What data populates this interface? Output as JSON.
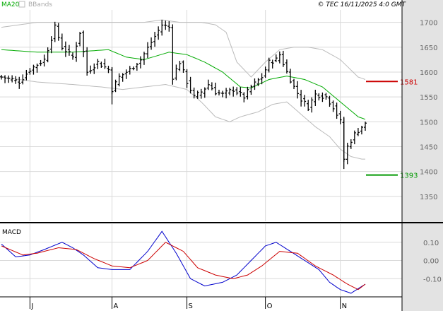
{
  "header": {
    "legend_ma20": "MA20",
    "legend_bbands": "BBands",
    "copyright": "© TEC 16/11/2025 4:0 GMT"
  },
  "colors": {
    "grid": "#d9d9d9",
    "price_bars": "#000000",
    "ma20": "#00aa00",
    "bbands": "#bbbbbb",
    "macd": "#0000cc",
    "signal": "#cc0000",
    "resistance": "#cc0000",
    "support": "#009900",
    "border": "#000000",
    "side_panel": "#e3e3e3"
  },
  "chart_data": [
    {
      "type": "ohlc",
      "title": "",
      "y_ticks": [
        "1700",
        "1650",
        "1600",
        "1550",
        "1500",
        "1450",
        "1400",
        "1350"
      ],
      "ylim": [
        1300,
        1725
      ],
      "x_ticks": [
        "J",
        "A",
        "S",
        "O",
        "N"
      ],
      "x_tick_index": [
        8,
        31,
        52,
        74,
        95
      ],
      "n_bars": 103,
      "anchors_close": [
        [
          0,
          1590
        ],
        [
          3,
          1585
        ],
        [
          5,
          1580
        ],
        [
          8,
          1605
        ],
        [
          12,
          1625
        ],
        [
          15,
          1690
        ],
        [
          17,
          1650
        ],
        [
          20,
          1630
        ],
        [
          22,
          1680
        ],
        [
          24,
          1600
        ],
        [
          27,
          1620
        ],
        [
          30,
          1605
        ],
        [
          31,
          1565
        ],
        [
          33,
          1590
        ],
        [
          36,
          1605
        ],
        [
          39,
          1625
        ],
        [
          42,
          1660
        ],
        [
          45,
          1695
        ],
        [
          47,
          1690
        ],
        [
          48,
          1590
        ],
        [
          50,
          1620
        ],
        [
          52,
          1580
        ],
        [
          54,
          1550
        ],
        [
          56,
          1560
        ],
        [
          58,
          1575
        ],
        [
          60,
          1560
        ],
        [
          62,
          1555
        ],
        [
          65,
          1565
        ],
        [
          68,
          1550
        ],
        [
          70,
          1570
        ],
        [
          73,
          1590
        ],
        [
          75,
          1620
        ],
        [
          77,
          1625
        ],
        [
          78,
          1635
        ],
        [
          80,
          1600
        ],
        [
          82,
          1570
        ],
        [
          84,
          1545
        ],
        [
          86,
          1530
        ],
        [
          88,
          1555
        ],
        [
          91,
          1550
        ],
        [
          93,
          1530
        ],
        [
          95,
          1500
        ],
        [
          96,
          1425
        ],
        [
          97,
          1450
        ],
        [
          99,
          1475
        ],
        [
          101,
          1490
        ],
        [
          102,
          1495
        ]
      ],
      "anchors_ma20": [
        [
          0,
          1645
        ],
        [
          10,
          1640
        ],
        [
          20,
          1640
        ],
        [
          30,
          1645
        ],
        [
          35,
          1630
        ],
        [
          40,
          1625
        ],
        [
          47,
          1640
        ],
        [
          52,
          1635
        ],
        [
          57,
          1620
        ],
        [
          62,
          1600
        ],
        [
          67,
          1570
        ],
        [
          70,
          1568
        ],
        [
          75,
          1585
        ],
        [
          80,
          1592
        ],
        [
          85,
          1585
        ],
        [
          90,
          1570
        ],
        [
          95,
          1540
        ],
        [
          100,
          1510
        ],
        [
          102,
          1505
        ]
      ],
      "anchors_bb_upper": [
        [
          0,
          1690
        ],
        [
          10,
          1700
        ],
        [
          20,
          1700
        ],
        [
          30,
          1700
        ],
        [
          40,
          1700
        ],
        [
          45,
          1705
        ],
        [
          50,
          1700
        ],
        [
          56,
          1700
        ],
        [
          60,
          1695
        ],
        [
          63,
          1680
        ],
        [
          66,
          1620
        ],
        [
          70,
          1590
        ],
        [
          74,
          1620
        ],
        [
          78,
          1645
        ],
        [
          82,
          1650
        ],
        [
          86,
          1650
        ],
        [
          90,
          1645
        ],
        [
          95,
          1625
        ],
        [
          100,
          1590
        ],
        [
          102,
          1585
        ]
      ],
      "anchors_bb_lower": [
        [
          0,
          1590
        ],
        [
          10,
          1580
        ],
        [
          20,
          1575
        ],
        [
          28,
          1570
        ],
        [
          34,
          1565
        ],
        [
          40,
          1570
        ],
        [
          46,
          1575
        ],
        [
          52,
          1565
        ],
        [
          56,
          1540
        ],
        [
          60,
          1510
        ],
        [
          64,
          1500
        ],
        [
          67,
          1510
        ],
        [
          72,
          1520
        ],
        [
          76,
          1535
        ],
        [
          80,
          1540
        ],
        [
          84,
          1515
        ],
        [
          88,
          1490
        ],
        [
          92,
          1470
        ],
        [
          95,
          1445
        ],
        [
          98,
          1430
        ],
        [
          101,
          1425
        ],
        [
          102,
          1425
        ]
      ],
      "levels": [
        {
          "label": "1581",
          "value": 1581,
          "color_key": "resistance"
        },
        {
          "label": "1393",
          "value": 1393,
          "color_key": "support"
        }
      ]
    },
    {
      "type": "line",
      "title": "MACD",
      "y_ticks": [
        "0.10",
        "0.00",
        "-0.10"
      ],
      "ylim": [
        -0.2,
        0.2
      ],
      "anchors_macd": [
        [
          0,
          0.09
        ],
        [
          4,
          0.02
        ],
        [
          8,
          0.03
        ],
        [
          12,
          0.06
        ],
        [
          17,
          0.1
        ],
        [
          20,
          0.07
        ],
        [
          23,
          0.03
        ],
        [
          27,
          -0.04
        ],
        [
          31,
          -0.05
        ],
        [
          36,
          -0.05
        ],
        [
          41,
          0.05
        ],
        [
          45,
          0.16
        ],
        [
          49,
          0.04
        ],
        [
          53,
          -0.1
        ],
        [
          57,
          -0.14
        ],
        [
          62,
          -0.12
        ],
        [
          66,
          -0.08
        ],
        [
          70,
          0.0
        ],
        [
          74,
          0.08
        ],
        [
          77,
          0.1
        ],
        [
          81,
          0.05
        ],
        [
          85,
          0.0
        ],
        [
          89,
          -0.05
        ],
        [
          92,
          -0.12
        ],
        [
          95,
          -0.16
        ],
        [
          98,
          -0.18
        ],
        [
          102,
          -0.13
        ]
      ],
      "anchors_signal": [
        [
          0,
          0.08
        ],
        [
          6,
          0.03
        ],
        [
          10,
          0.04
        ],
        [
          16,
          0.07
        ],
        [
          21,
          0.06
        ],
        [
          26,
          0.01
        ],
        [
          31,
          -0.03
        ],
        [
          36,
          -0.04
        ],
        [
          41,
          0.0
        ],
        [
          46,
          0.1
        ],
        [
          51,
          0.05
        ],
        [
          55,
          -0.04
        ],
        [
          60,
          -0.08
        ],
        [
          65,
          -0.1
        ],
        [
          69,
          -0.08
        ],
        [
          73,
          -0.03
        ],
        [
          78,
          0.05
        ],
        [
          83,
          0.04
        ],
        [
          88,
          -0.03
        ],
        [
          93,
          -0.08
        ],
        [
          97,
          -0.13
        ],
        [
          100,
          -0.16
        ],
        [
          102,
          -0.13
        ]
      ]
    }
  ]
}
